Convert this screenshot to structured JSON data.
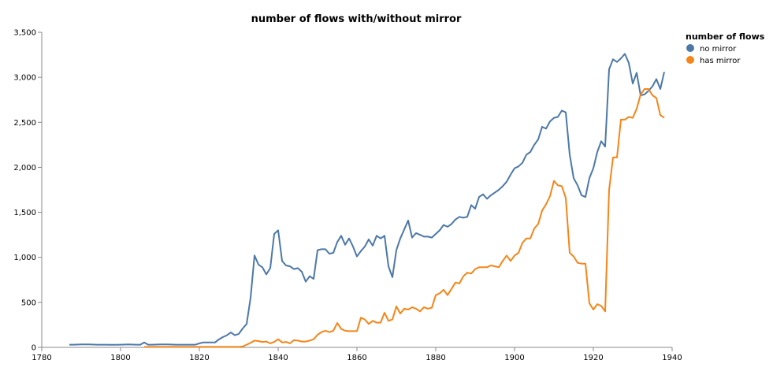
{
  "chart_data": {
    "type": "line",
    "title": "number of flows with/without mirror",
    "xlabel": "",
    "ylabel": "",
    "xlim": [
      1780,
      1940
    ],
    "ylim": [
      0,
      3500
    ],
    "x_ticks": [
      1780,
      1800,
      1820,
      1840,
      1860,
      1880,
      1900,
      1920,
      1940
    ],
    "x_tick_labels": [
      "1780",
      "1800",
      "1820",
      "1840",
      "1860",
      "1880",
      "1900",
      "1920",
      "1940"
    ],
    "y_ticks": [
      0,
      500,
      1000,
      1500,
      2000,
      2500,
      3000,
      3500
    ],
    "y_tick_labels": [
      "0",
      "500",
      "1,000",
      "1,500",
      "2,000",
      "2,500",
      "3,000",
      "3,500"
    ],
    "grid": false,
    "legend": {
      "title": "number of flows",
      "placement": "top-right",
      "entries": [
        "no mirror",
        "has mirror"
      ]
    },
    "series": [
      {
        "name": "no mirror",
        "color": "#4c78a8",
        "points": [
          [
            1787,
            30
          ],
          [
            1788,
            30
          ],
          [
            1790,
            32
          ],
          [
            1792,
            32
          ],
          [
            1794,
            30
          ],
          [
            1796,
            30
          ],
          [
            1798,
            28
          ],
          [
            1800,
            30
          ],
          [
            1802,
            32
          ],
          [
            1804,
            30
          ],
          [
            1805,
            30
          ],
          [
            1806,
            55
          ],
          [
            1807,
            30
          ],
          [
            1808,
            30
          ],
          [
            1810,
            32
          ],
          [
            1812,
            32
          ],
          [
            1814,
            30
          ],
          [
            1816,
            30
          ],
          [
            1818,
            30
          ],
          [
            1819,
            30
          ],
          [
            1820,
            45
          ],
          [
            1821,
            55
          ],
          [
            1822,
            55
          ],
          [
            1823,
            55
          ],
          [
            1824,
            55
          ],
          [
            1825,
            90
          ],
          [
            1826,
            115
          ],
          [
            1827,
            135
          ],
          [
            1828,
            165
          ],
          [
            1829,
            135
          ],
          [
            1830,
            150
          ],
          [
            1831,
            210
          ],
          [
            1832,
            260
          ],
          [
            1833,
            550
          ],
          [
            1834,
            1020
          ],
          [
            1835,
            920
          ],
          [
            1836,
            890
          ],
          [
            1837,
            810
          ],
          [
            1838,
            880
          ],
          [
            1839,
            1260
          ],
          [
            1840,
            1300
          ],
          [
            1841,
            960
          ],
          [
            1842,
            910
          ],
          [
            1843,
            900
          ],
          [
            1844,
            870
          ],
          [
            1845,
            880
          ],
          [
            1846,
            840
          ],
          [
            1847,
            730
          ],
          [
            1848,
            790
          ],
          [
            1849,
            760
          ],
          [
            1850,
            1080
          ],
          [
            1851,
            1090
          ],
          [
            1852,
            1090
          ],
          [
            1853,
            1040
          ],
          [
            1854,
            1050
          ],
          [
            1855,
            1170
          ],
          [
            1856,
            1240
          ],
          [
            1857,
            1140
          ],
          [
            1858,
            1210
          ],
          [
            1859,
            1120
          ],
          [
            1860,
            1010
          ],
          [
            1861,
            1070
          ],
          [
            1862,
            1120
          ],
          [
            1863,
            1200
          ],
          [
            1864,
            1130
          ],
          [
            1865,
            1240
          ],
          [
            1866,
            1210
          ],
          [
            1867,
            1240
          ],
          [
            1868,
            900
          ],
          [
            1869,
            780
          ],
          [
            1870,
            1080
          ],
          [
            1871,
            1210
          ],
          [
            1872,
            1310
          ],
          [
            1873,
            1410
          ],
          [
            1874,
            1220
          ],
          [
            1875,
            1270
          ],
          [
            1876,
            1250
          ],
          [
            1877,
            1230
          ],
          [
            1878,
            1230
          ],
          [
            1879,
            1220
          ],
          [
            1880,
            1260
          ],
          [
            1881,
            1300
          ],
          [
            1882,
            1360
          ],
          [
            1883,
            1340
          ],
          [
            1884,
            1370
          ],
          [
            1885,
            1420
          ],
          [
            1886,
            1450
          ],
          [
            1887,
            1440
          ],
          [
            1888,
            1450
          ],
          [
            1889,
            1580
          ],
          [
            1890,
            1540
          ],
          [
            1891,
            1670
          ],
          [
            1892,
            1700
          ],
          [
            1893,
            1650
          ],
          [
            1894,
            1690
          ],
          [
            1895,
            1720
          ],
          [
            1896,
            1750
          ],
          [
            1897,
            1790
          ],
          [
            1898,
            1840
          ],
          [
            1899,
            1920
          ],
          [
            1900,
            1990
          ],
          [
            1901,
            2010
          ],
          [
            1902,
            2050
          ],
          [
            1903,
            2140
          ],
          [
            1904,
            2170
          ],
          [
            1905,
            2250
          ],
          [
            1906,
            2310
          ],
          [
            1907,
            2450
          ],
          [
            1908,
            2430
          ],
          [
            1909,
            2510
          ],
          [
            1910,
            2550
          ],
          [
            1911,
            2560
          ],
          [
            1912,
            2630
          ],
          [
            1913,
            2610
          ],
          [
            1914,
            2140
          ],
          [
            1915,
            1880
          ],
          [
            1916,
            1800
          ],
          [
            1917,
            1690
          ],
          [
            1918,
            1670
          ],
          [
            1919,
            1880
          ],
          [
            1920,
            1990
          ],
          [
            1921,
            2170
          ],
          [
            1922,
            2290
          ],
          [
            1923,
            2230
          ],
          [
            1924,
            3090
          ],
          [
            1925,
            3200
          ],
          [
            1926,
            3170
          ],
          [
            1927,
            3210
          ],
          [
            1928,
            3260
          ],
          [
            1929,
            3160
          ],
          [
            1930,
            2930
          ],
          [
            1931,
            3050
          ],
          [
            1932,
            2800
          ],
          [
            1933,
            2810
          ],
          [
            1934,
            2850
          ],
          [
            1935,
            2900
          ],
          [
            1936,
            2980
          ],
          [
            1937,
            2870
          ],
          [
            1938,
            3060
          ]
        ]
      },
      {
        "name": "has mirror",
        "color": "#f58518",
        "points": [
          [
            1806,
            5
          ],
          [
            1808,
            5
          ],
          [
            1810,
            5
          ],
          [
            1812,
            5
          ],
          [
            1814,
            5
          ],
          [
            1816,
            5
          ],
          [
            1818,
            5
          ],
          [
            1820,
            5
          ],
          [
            1822,
            5
          ],
          [
            1824,
            5
          ],
          [
            1826,
            5
          ],
          [
            1828,
            5
          ],
          [
            1830,
            5
          ],
          [
            1831,
            10
          ],
          [
            1832,
            30
          ],
          [
            1833,
            50
          ],
          [
            1834,
            75
          ],
          [
            1835,
            70
          ],
          [
            1836,
            60
          ],
          [
            1837,
            65
          ],
          [
            1838,
            45
          ],
          [
            1839,
            60
          ],
          [
            1840,
            90
          ],
          [
            1841,
            55
          ],
          [
            1842,
            60
          ],
          [
            1843,
            45
          ],
          [
            1844,
            80
          ],
          [
            1845,
            75
          ],
          [
            1846,
            65
          ],
          [
            1847,
            65
          ],
          [
            1848,
            75
          ],
          [
            1849,
            90
          ],
          [
            1850,
            140
          ],
          [
            1851,
            170
          ],
          [
            1852,
            185
          ],
          [
            1853,
            170
          ],
          [
            1854,
            185
          ],
          [
            1855,
            270
          ],
          [
            1856,
            205
          ],
          [
            1857,
            185
          ],
          [
            1858,
            180
          ],
          [
            1859,
            180
          ],
          [
            1860,
            180
          ],
          [
            1861,
            330
          ],
          [
            1862,
            310
          ],
          [
            1863,
            260
          ],
          [
            1864,
            295
          ],
          [
            1865,
            275
          ],
          [
            1866,
            275
          ],
          [
            1867,
            385
          ],
          [
            1868,
            295
          ],
          [
            1869,
            310
          ],
          [
            1870,
            455
          ],
          [
            1871,
            375
          ],
          [
            1872,
            430
          ],
          [
            1873,
            420
          ],
          [
            1874,
            445
          ],
          [
            1875,
            430
          ],
          [
            1876,
            400
          ],
          [
            1877,
            445
          ],
          [
            1878,
            430
          ],
          [
            1879,
            440
          ],
          [
            1880,
            580
          ],
          [
            1881,
            600
          ],
          [
            1882,
            640
          ],
          [
            1883,
            580
          ],
          [
            1884,
            650
          ],
          [
            1885,
            720
          ],
          [
            1886,
            710
          ],
          [
            1887,
            790
          ],
          [
            1888,
            830
          ],
          [
            1889,
            820
          ],
          [
            1890,
            870
          ],
          [
            1891,
            890
          ],
          [
            1892,
            890
          ],
          [
            1893,
            890
          ],
          [
            1894,
            910
          ],
          [
            1895,
            900
          ],
          [
            1896,
            890
          ],
          [
            1897,
            960
          ],
          [
            1898,
            1020
          ],
          [
            1899,
            960
          ],
          [
            1900,
            1020
          ],
          [
            1901,
            1050
          ],
          [
            1902,
            1160
          ],
          [
            1903,
            1210
          ],
          [
            1904,
            1210
          ],
          [
            1905,
            1320
          ],
          [
            1906,
            1370
          ],
          [
            1907,
            1520
          ],
          [
            1908,
            1590
          ],
          [
            1909,
            1680
          ],
          [
            1910,
            1850
          ],
          [
            1911,
            1800
          ],
          [
            1912,
            1790
          ],
          [
            1913,
            1660
          ],
          [
            1914,
            1050
          ],
          [
            1915,
            1010
          ],
          [
            1916,
            940
          ],
          [
            1917,
            930
          ],
          [
            1918,
            930
          ],
          [
            1919,
            490
          ],
          [
            1920,
            420
          ],
          [
            1921,
            480
          ],
          [
            1922,
            460
          ],
          [
            1923,
            400
          ],
          [
            1924,
            1750
          ],
          [
            1925,
            2110
          ],
          [
            1926,
            2110
          ],
          [
            1927,
            2530
          ],
          [
            1928,
            2530
          ],
          [
            1929,
            2560
          ],
          [
            1930,
            2550
          ],
          [
            1931,
            2650
          ],
          [
            1932,
            2810
          ],
          [
            1933,
            2870
          ],
          [
            1934,
            2870
          ],
          [
            1935,
            2800
          ],
          [
            1936,
            2770
          ],
          [
            1937,
            2580
          ],
          [
            1938,
            2550
          ]
        ]
      }
    ]
  }
}
